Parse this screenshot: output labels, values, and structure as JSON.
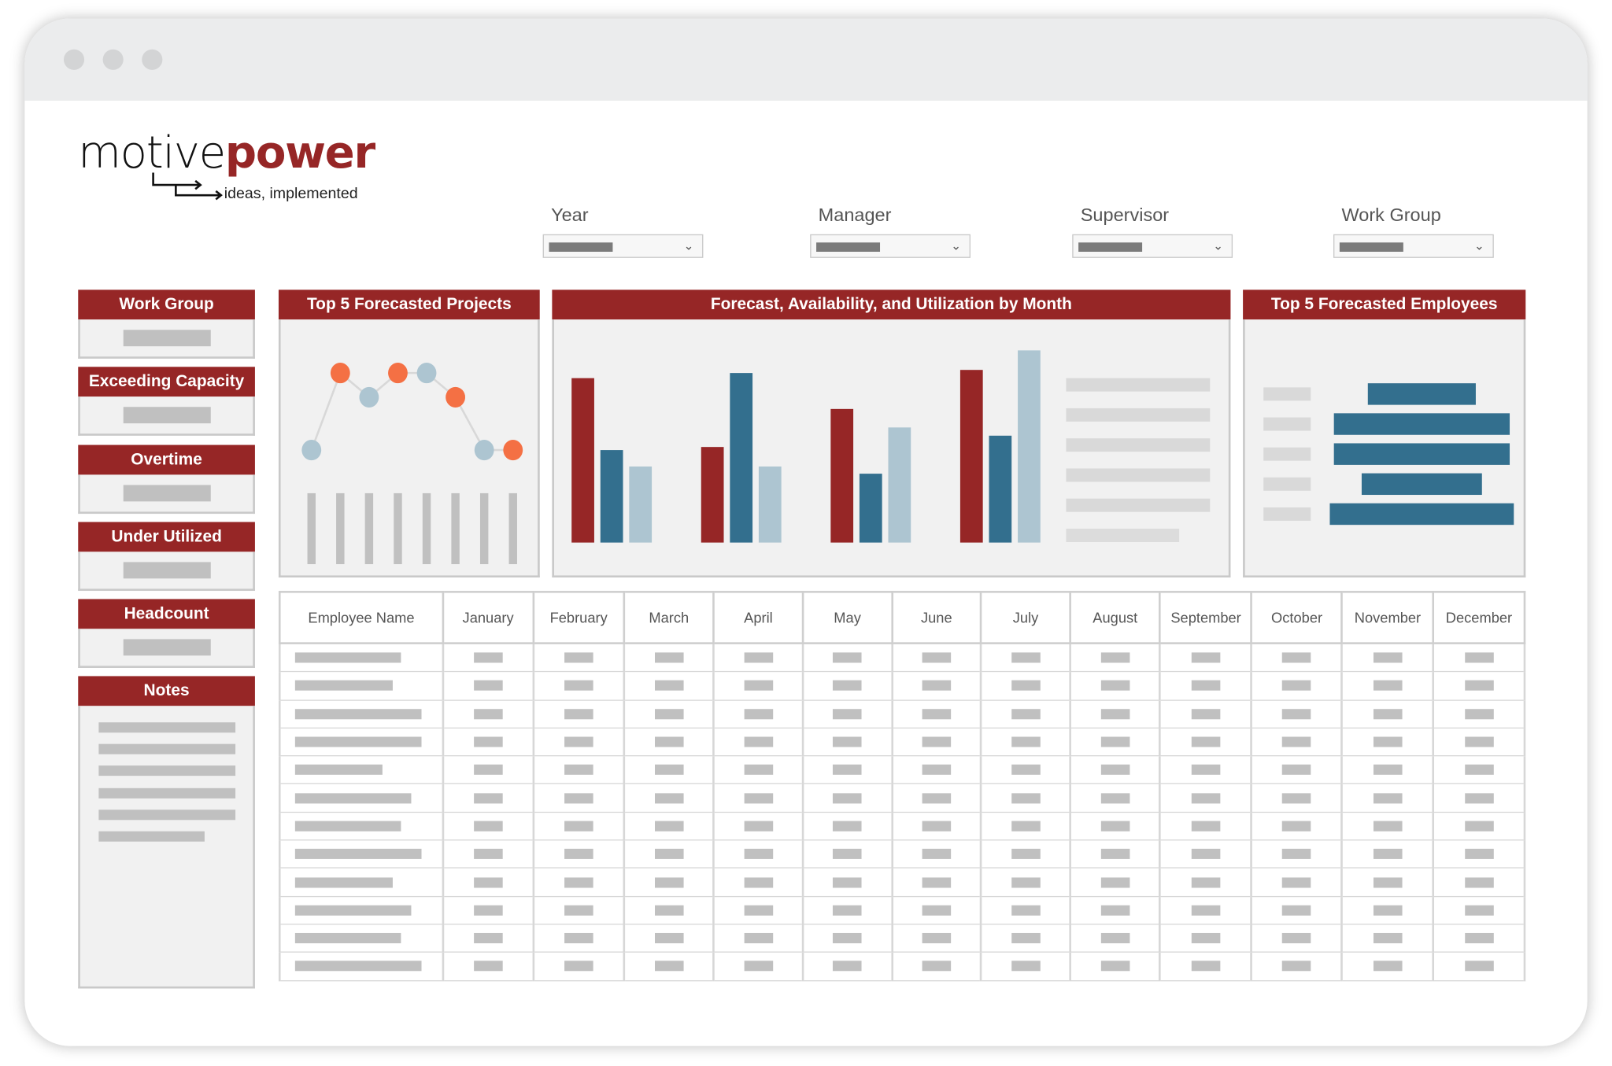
{
  "logo": {
    "part1": "motive",
    "part2": "power",
    "tagline": "ideas, implemented"
  },
  "filters": [
    {
      "label": "Year"
    },
    {
      "label": "Manager"
    },
    {
      "label": "Supervisor"
    },
    {
      "label": "Work Group"
    }
  ],
  "sidebar": {
    "cards": [
      {
        "title": "Work Group"
      },
      {
        "title": "Exceeding Capacity"
      },
      {
        "title": "Overtime"
      },
      {
        "title": "Under Utilized"
      },
      {
        "title": "Headcount"
      }
    ],
    "notes_title": "Notes"
  },
  "panels": {
    "projects": {
      "title": "Top 5 Forecasted Projects",
      "point_levels": [
        0.3,
        1.0,
        0.78,
        1.0,
        1.0,
        0.78,
        0.3,
        0.3
      ],
      "point_colors": [
        "#adc5d1",
        "#f47044",
        "#adc5d1",
        "#f47044",
        "#adc5d1",
        "#f47044",
        "#adc5d1",
        "#f47044"
      ]
    },
    "forecast": {
      "title": "Forecast, Availability, and Utilization by Month",
      "groups": [
        [
          160,
          90,
          74
        ],
        [
          93,
          165,
          74
        ],
        [
          130,
          67,
          112
        ],
        [
          168,
          104,
          187
        ]
      ],
      "colors": [
        "#962626",
        "#336f8e",
        "#adc5d1"
      ]
    },
    "employees": {
      "title": "Top 5 Forecasted Employees",
      "values": [
        105,
        171,
        171,
        117,
        179
      ],
      "color": "#336f8e"
    }
  },
  "table": {
    "headers": [
      "Employee Name",
      "January",
      "February",
      "March",
      "April",
      "May",
      "June",
      "July",
      "August",
      "September",
      "October",
      "November",
      "December"
    ]
  }
}
